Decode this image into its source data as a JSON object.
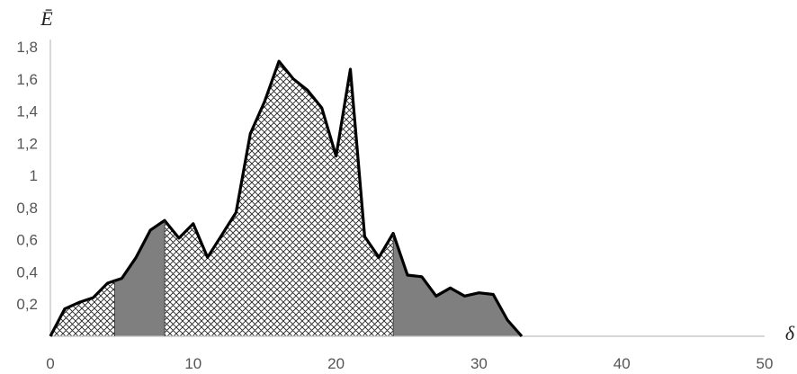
{
  "chart_data": {
    "type": "area",
    "title": "",
    "xlabel": "δ",
    "ylabel": "Ē",
    "xlim": [
      0,
      50
    ],
    "ylim": [
      0,
      1.8
    ],
    "xticks": [
      {
        "value": 0,
        "label": "0"
      },
      {
        "value": 10,
        "label": "10"
      },
      {
        "value": 20,
        "label": "20"
      },
      {
        "value": 30,
        "label": "30"
      },
      {
        "value": 40,
        "label": "40"
      },
      {
        "value": 50,
        "label": "50"
      }
    ],
    "yticks": [
      {
        "value": 0.2,
        "label": "0,2"
      },
      {
        "value": 0.4,
        "label": "0,4"
      },
      {
        "value": 0.6,
        "label": "0,6"
      },
      {
        "value": 0.8,
        "label": "0,8"
      },
      {
        "value": 1.0,
        "label": "1"
      },
      {
        "value": 1.2,
        "label": "1,2"
      },
      {
        "value": 1.4,
        "label": "1,4"
      },
      {
        "value": 1.6,
        "label": "1,6"
      },
      {
        "value": 1.8,
        "label": "1,8"
      }
    ],
    "grid": false,
    "legend": "none",
    "series": [
      {
        "x": [
          0,
          1,
          2,
          3,
          4,
          5,
          6,
          7,
          8,
          9,
          10,
          11,
          12,
          13,
          14,
          15,
          16,
          17,
          18,
          19,
          20,
          21,
          22,
          23,
          24,
          25,
          26,
          27,
          28,
          29,
          30,
          31,
          32,
          33
        ],
        "values": [
          0.0,
          0.17,
          0.21,
          0.24,
          0.33,
          0.36,
          0.49,
          0.66,
          0.72,
          0.61,
          0.7,
          0.49,
          0.63,
          0.77,
          1.26,
          1.46,
          1.71,
          1.6,
          1.53,
          1.42,
          1.12,
          1.66,
          0.62,
          0.49,
          0.64,
          0.38,
          0.37,
          0.25,
          0.3,
          0.25,
          0.27,
          0.26,
          0.1,
          0.0
        ]
      }
    ],
    "shaded_regions": [
      {
        "from": 0,
        "to": 4.5,
        "fill": "crosshatch"
      },
      {
        "from": 4.5,
        "to": 8,
        "fill": "solid"
      },
      {
        "from": 8,
        "to": 24,
        "fill": "crosshatch"
      },
      {
        "from": 24,
        "to": 33,
        "fill": "solid"
      }
    ],
    "colors": {
      "line": "#000000",
      "solid_fill": "#7f7f7f",
      "hatch_line": "#222222",
      "axis": "#bfbfbf",
      "tick_text": "#555555"
    }
  }
}
